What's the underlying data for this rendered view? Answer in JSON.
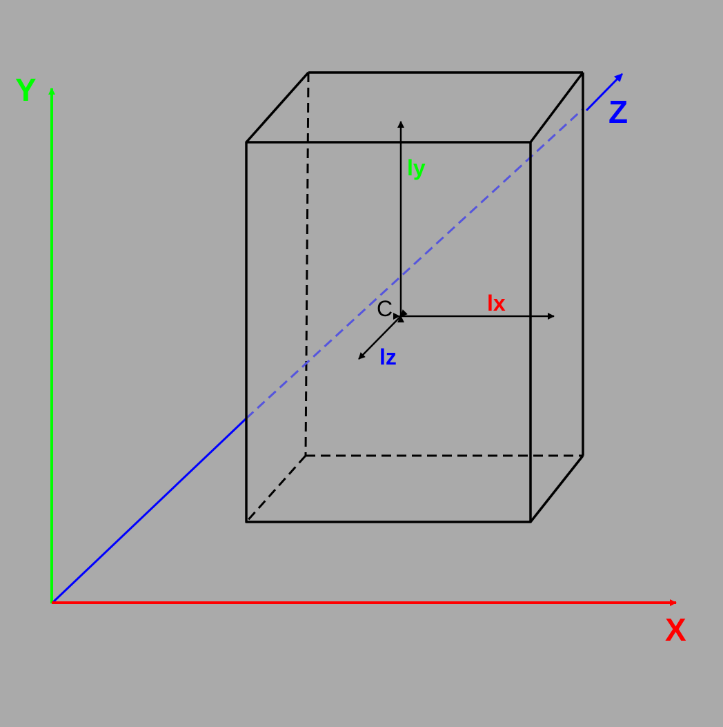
{
  "axes": {
    "x_label": "X",
    "y_label": "Y",
    "z_label": "Z"
  },
  "dimensions": {
    "lx_label": "lx",
    "ly_label": "ly",
    "lz_label": "lz",
    "center_label": "C"
  },
  "colors": {
    "background": "#aaaaaa",
    "x_axis": "#ff0000",
    "y_axis": "#00ff00",
    "z_axis": "#0000ff",
    "z_axis_hidden": "#5555dd",
    "box": "#000000"
  }
}
